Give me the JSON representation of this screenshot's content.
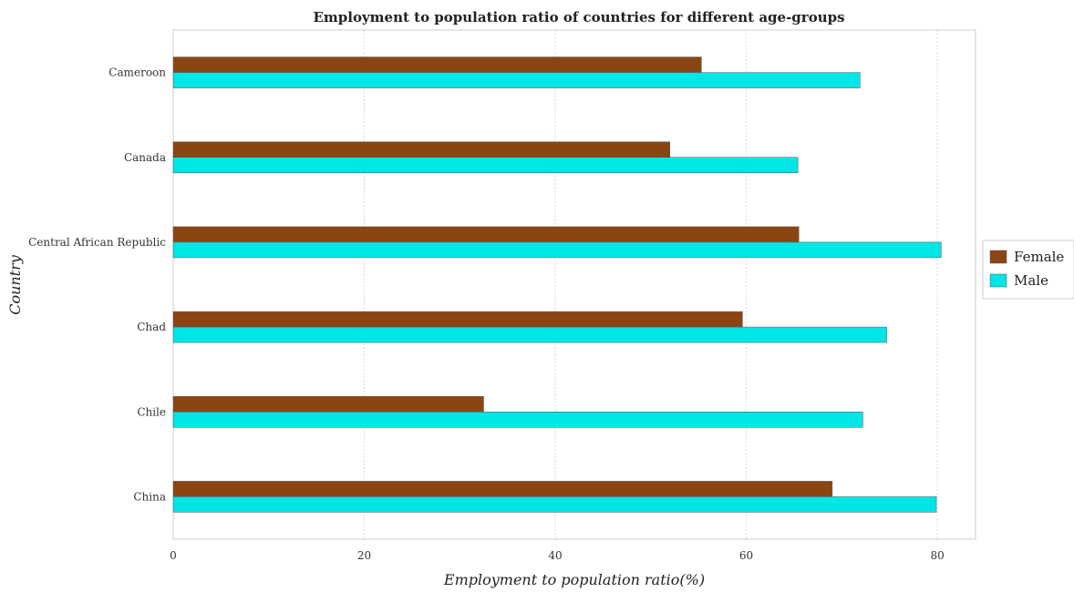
{
  "colors": {
    "female": "#8b4513",
    "male": "#00e5e5",
    "bar_stroke": "#555555",
    "grid": "#d9d9d9"
  },
  "chart_data": {
    "type": "bar",
    "orientation": "horizontal",
    "title": "Employment to population ratio of countries for different age-groups",
    "xlabel": "Employment to population ratio(%)",
    "ylabel": "Country",
    "categories": [
      "Cameroon",
      "Canada",
      "Central African Republic",
      "Chad",
      "Chile",
      "China"
    ],
    "series": [
      {
        "name": "Female",
        "values": [
          55.3,
          52.0,
          65.5,
          59.6,
          32.5,
          69.0
        ]
      },
      {
        "name": "Male",
        "values": [
          71.9,
          65.4,
          80.4,
          74.7,
          72.2,
          79.9
        ]
      }
    ],
    "xlim": [
      0,
      84
    ],
    "xticks": [
      0,
      20,
      40,
      60,
      80
    ],
    "grid": true,
    "legend_position": "right"
  }
}
